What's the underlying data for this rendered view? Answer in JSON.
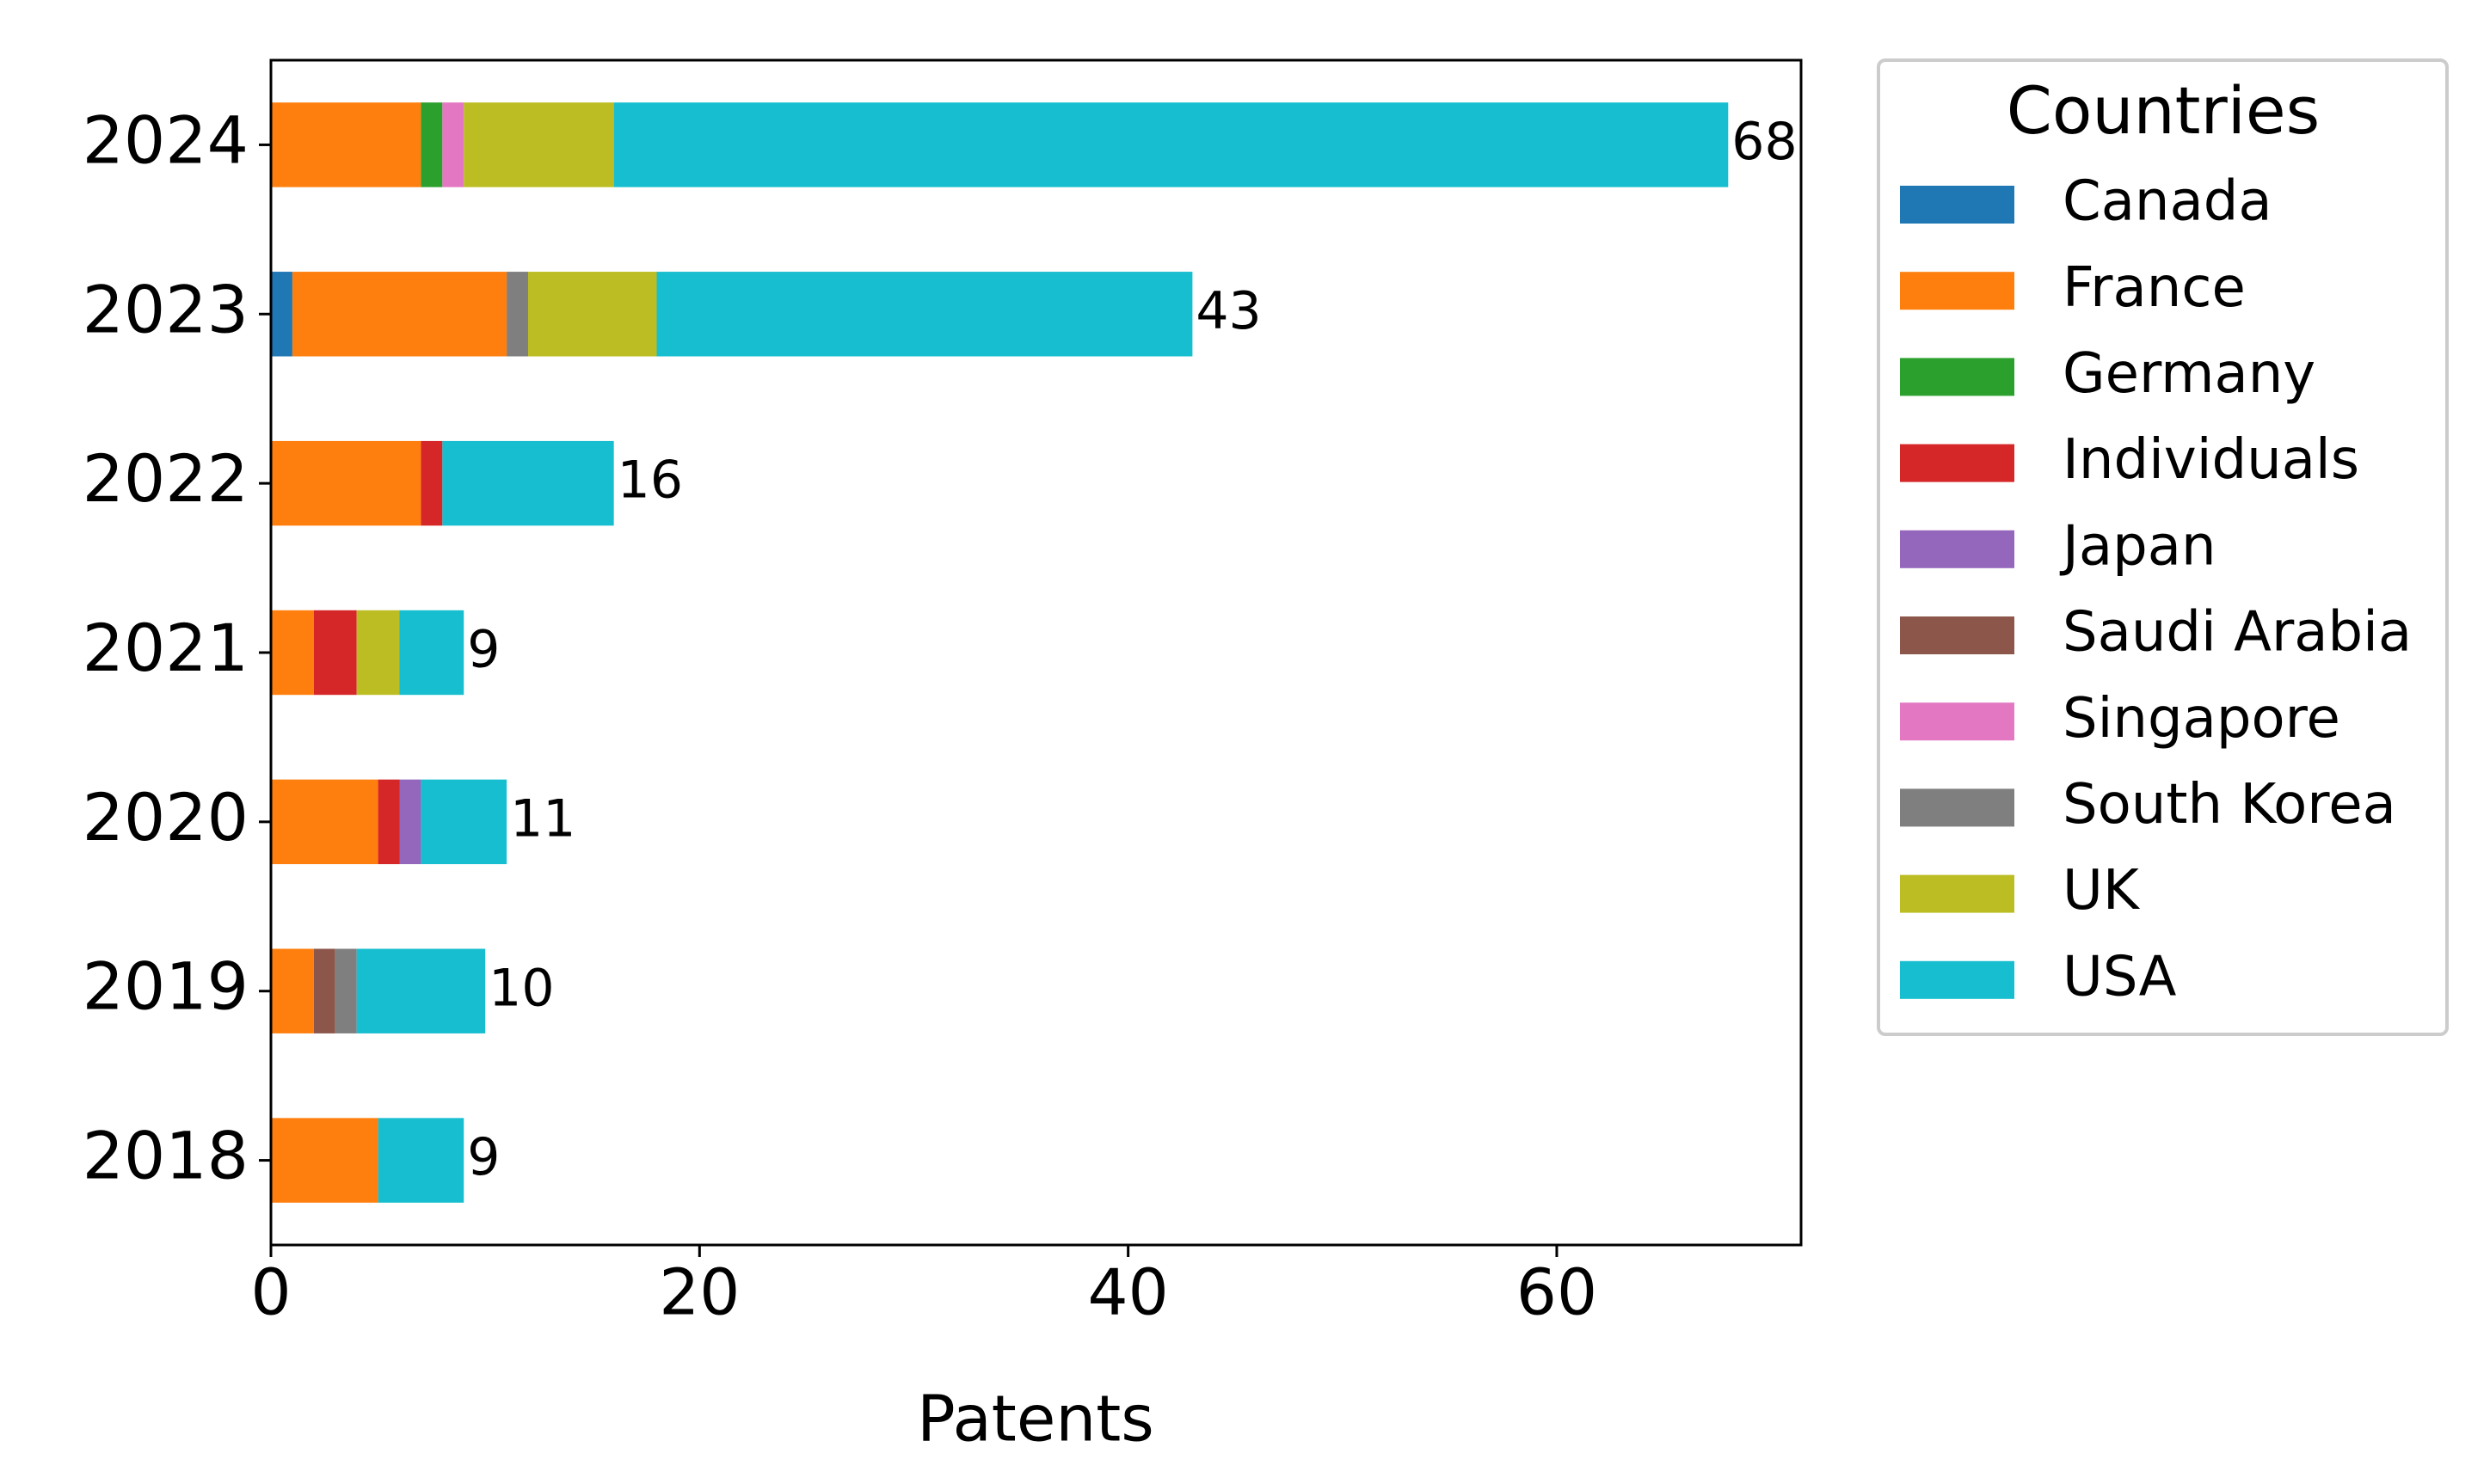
{
  "chart_data": {
    "type": "stacked-barh",
    "xlabel": "Patents",
    "legend_title": "Countries",
    "legend_position": "outside-right",
    "categories": [
      "2018",
      "2019",
      "2020",
      "2021",
      "2022",
      "2023",
      "2024"
    ],
    "series": [
      {
        "name": "Canada",
        "color": "#1f77b4",
        "values": [
          0,
          0,
          0,
          0,
          0,
          1,
          0
        ]
      },
      {
        "name": "France",
        "color": "#ff7f0e",
        "values": [
          5,
          2,
          5,
          2,
          7,
          10,
          7
        ]
      },
      {
        "name": "Germany",
        "color": "#2ca02c",
        "values": [
          0,
          0,
          0,
          0,
          0,
          0,
          1
        ]
      },
      {
        "name": "Individuals",
        "color": "#d62728",
        "values": [
          0,
          0,
          1,
          2,
          1,
          0,
          0
        ]
      },
      {
        "name": "Japan",
        "color": "#9467bd",
        "values": [
          0,
          0,
          1,
          0,
          0,
          0,
          0
        ]
      },
      {
        "name": "Saudi Arabia",
        "color": "#8c564b",
        "values": [
          0,
          1,
          0,
          0,
          0,
          0,
          0
        ]
      },
      {
        "name": "Singapore",
        "color": "#e377c2",
        "values": [
          0,
          0,
          0,
          0,
          0,
          0,
          1
        ]
      },
      {
        "name": "South Korea",
        "color": "#7f7f7f",
        "values": [
          0,
          1,
          0,
          0,
          0,
          1,
          0
        ]
      },
      {
        "name": "UK",
        "color": "#bcbd22",
        "values": [
          0,
          0,
          0,
          2,
          0,
          6,
          7
        ]
      },
      {
        "name": "USA",
        "color": "#17becf",
        "values": [
          4,
          6,
          4,
          3,
          8,
          25,
          52
        ]
      }
    ],
    "totals": [
      9,
      10,
      11,
      9,
      16,
      43,
      68
    ],
    "xlim": [
      0,
      71.4
    ],
    "xticks": [
      0,
      20,
      40,
      60
    ]
  }
}
